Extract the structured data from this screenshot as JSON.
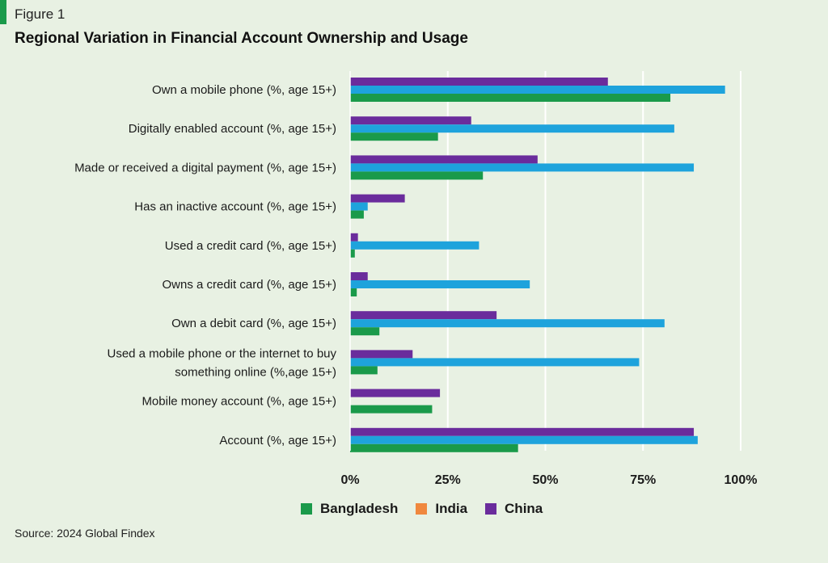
{
  "figure_label": "Figure 1",
  "title": "Regional Variation in Financial Account Ownership and Usage",
  "source": "Source: 2024 Global Findex",
  "colors": {
    "accent": "#1a9a4a",
    "gridline": "#ffffff"
  },
  "chart_data": {
    "type": "bar",
    "orientation": "horizontal",
    "categories": [
      [
        "Own a mobile phone (%, age 15+)"
      ],
      [
        "Digitally enabled account (%, age 15+)"
      ],
      [
        "Made or received a digital payment (%, age 15+)"
      ],
      [
        "Has an inactive account (%, age 15+)"
      ],
      [
        "Used a credit card (%, age 15+)"
      ],
      [
        "Owns a credit card (%, age 15+)"
      ],
      [
        "Own a debit card (%, age 15+)"
      ],
      [
        "Used a mobile phone or the internet to buy",
        "something online (%,age 15+)"
      ],
      [
        "Mobile money account (%, age 15+)"
      ],
      [
        "Account (%, age 15+)"
      ]
    ],
    "series": [
      {
        "name": "China",
        "color": "#6a2c9c",
        "values": [
          66,
          31,
          48,
          14,
          2,
          4.5,
          37.5,
          16,
          23,
          88
        ]
      },
      {
        "name": "",
        "color": "#1ea3dc",
        "values": [
          96,
          83,
          88,
          4.5,
          33,
          46,
          80.5,
          74,
          null,
          89
        ]
      },
      {
        "name": "Bangladesh",
        "color": "#1a9a4a",
        "values": [
          82,
          22.5,
          34,
          3.5,
          1.2,
          1.7,
          7.5,
          7,
          21,
          43
        ]
      }
    ],
    "legend": [
      {
        "name": "Bangladesh",
        "color": "#1a9a4a"
      },
      {
        "name": "India",
        "color": "#f0883e"
      },
      {
        "name": "China",
        "color": "#6a2c9c"
      }
    ],
    "xlim": [
      0,
      100
    ],
    "xticks": [
      0,
      25,
      50,
      75,
      100
    ],
    "xtick_labels": [
      "0%",
      "25%",
      "50%",
      "75%",
      "100%"
    ],
    "grid": true,
    "legend_position": "bottom"
  }
}
